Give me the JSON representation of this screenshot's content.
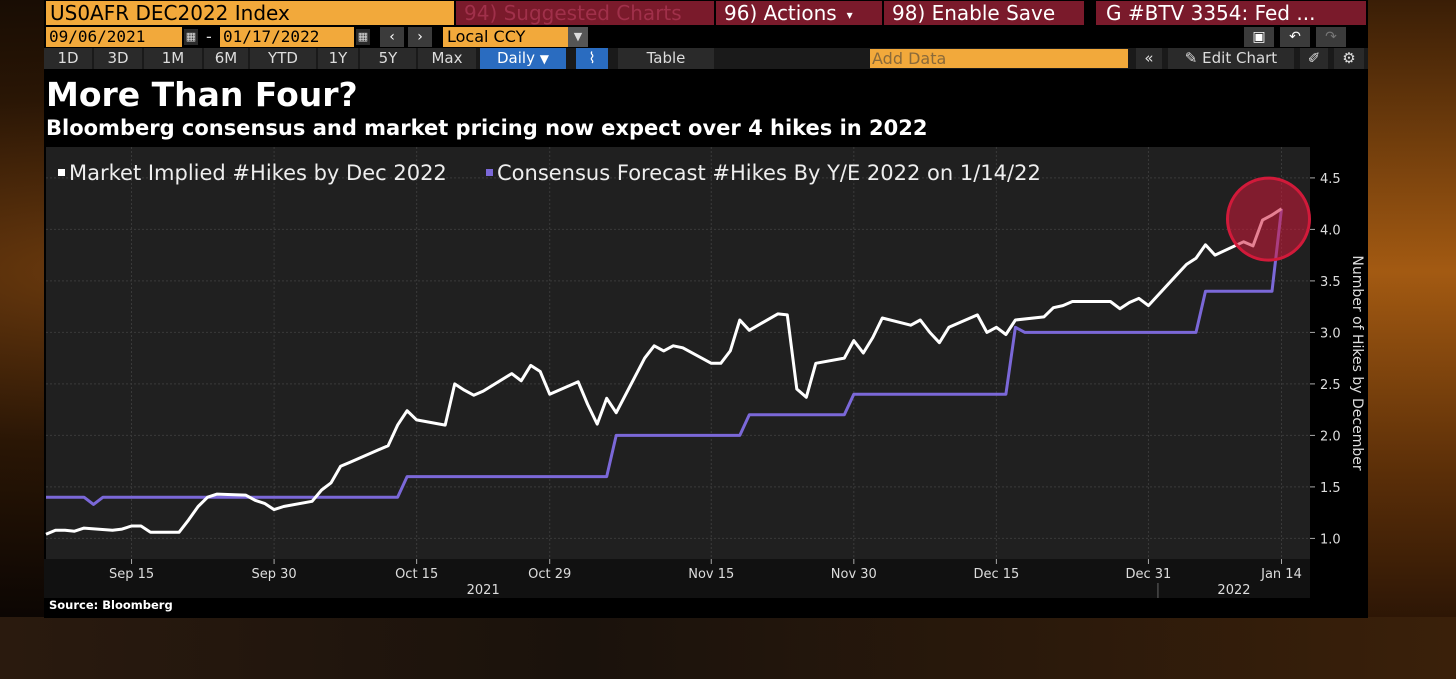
{
  "toolbar": {
    "ticker": "US0AFR DEC2022 Index",
    "suggested_charts": "94) Suggested Charts",
    "actions": "96) Actions",
    "enable_save": "98) Enable Save",
    "news": "G #BTV 3354: Fed ...",
    "start_date": "09/06/2021",
    "end_date": "01/17/2022",
    "currency": "Local CCY",
    "periods": [
      "1D",
      "3D",
      "1M",
      "6M",
      "YTD",
      "1Y",
      "5Y",
      "Max"
    ],
    "frequency": "Daily",
    "table_label": "Table",
    "add_data_placeholder": "Add Data",
    "edit_chart": "Edit Chart"
  },
  "title": "More Than Four?",
  "subtitle": "Bloomberg consensus and market pricing now expect over 4 hikes in 2022",
  "source": "Source: Bloomberg",
  "colors": {
    "market_series": "#ffffff",
    "consensus_series": "#7b68d8",
    "highlight_circle": "#d11a3a",
    "ticker_bg": "#f2a93b",
    "button_bg": "#7a1a2b",
    "active_tab": "#2a6cc0"
  },
  "chart_data": {
    "type": "line",
    "title": "More Than Four?",
    "subtitle": "Bloomberg consensus and market pricing now expect over 4 hikes in 2022",
    "ylabel": "Number of Hikes by December",
    "ylim": [
      0.8,
      4.8
    ],
    "yticks": [
      1.0,
      1.5,
      2.0,
      2.5,
      3.0,
      3.5,
      4.0,
      4.5
    ],
    "ytick_labels": [
      "1.0",
      "1.5",
      "2.0",
      "2.5",
      "3.0",
      "3.5",
      "4.0",
      "4.5"
    ],
    "xlim": [
      "2021-09-06",
      "2022-01-17"
    ],
    "xticks": [
      "2021-09-15",
      "2021-09-30",
      "2021-10-15",
      "2021-10-29",
      "2021-11-15",
      "2021-11-30",
      "2021-12-15",
      "2021-12-31",
      "2022-01-14"
    ],
    "xtick_labels": [
      "Sep 15",
      "Sep 30",
      "Oct 15",
      "Oct 29",
      "Nov 15",
      "Nov 30",
      "Dec 15",
      "Dec 31",
      "Jan 14"
    ],
    "year_labels": [
      {
        "date": "2021-10-22",
        "label": "2021"
      },
      {
        "date": "2022-01-09",
        "label": "2022"
      }
    ],
    "grid": true,
    "legend": "top-left",
    "series": [
      {
        "name": "Market Implied #Hikes by Dec 2022",
        "color": "#ffffff",
        "points": [
          [
            "2021-09-06",
            1.04
          ],
          [
            "2021-09-07",
            1.08
          ],
          [
            "2021-09-08",
            1.08
          ],
          [
            "2021-09-09",
            1.07
          ],
          [
            "2021-09-10",
            1.1
          ],
          [
            "2021-09-13",
            1.08
          ],
          [
            "2021-09-14",
            1.09
          ],
          [
            "2021-09-15",
            1.12
          ],
          [
            "2021-09-16",
            1.12
          ],
          [
            "2021-09-17",
            1.06
          ],
          [
            "2021-09-20",
            1.06
          ],
          [
            "2021-09-21",
            1.18
          ],
          [
            "2021-09-22",
            1.31
          ],
          [
            "2021-09-23",
            1.4
          ],
          [
            "2021-09-24",
            1.43
          ],
          [
            "2021-09-27",
            1.42
          ],
          [
            "2021-09-28",
            1.37
          ],
          [
            "2021-09-29",
            1.34
          ],
          [
            "2021-09-30",
            1.28
          ],
          [
            "2021-10-01",
            1.31
          ],
          [
            "2021-10-04",
            1.36
          ],
          [
            "2021-10-05",
            1.47
          ],
          [
            "2021-10-06",
            1.54
          ],
          [
            "2021-10-07",
            1.7
          ],
          [
            "2021-10-08",
            1.74
          ],
          [
            "2021-10-11",
            1.86
          ],
          [
            "2021-10-12",
            1.9
          ],
          [
            "2021-10-13",
            2.1
          ],
          [
            "2021-10-14",
            2.24
          ],
          [
            "2021-10-15",
            2.15
          ],
          [
            "2021-10-18",
            2.1
          ],
          [
            "2021-10-19",
            2.5
          ],
          [
            "2021-10-20",
            2.44
          ],
          [
            "2021-10-21",
            2.39
          ],
          [
            "2021-10-22",
            2.43
          ],
          [
            "2021-10-25",
            2.6
          ],
          [
            "2021-10-26",
            2.53
          ],
          [
            "2021-10-27",
            2.68
          ],
          [
            "2021-10-28",
            2.62
          ],
          [
            "2021-10-29",
            2.4
          ],
          [
            "2021-11-01",
            2.52
          ],
          [
            "2021-11-02",
            2.3
          ],
          [
            "2021-11-03",
            2.11
          ],
          [
            "2021-11-04",
            2.36
          ],
          [
            "2021-11-05",
            2.22
          ],
          [
            "2021-11-08",
            2.75
          ],
          [
            "2021-11-09",
            2.87
          ],
          [
            "2021-11-10",
            2.82
          ],
          [
            "2021-11-11",
            2.87
          ],
          [
            "2021-11-12",
            2.85
          ],
          [
            "2021-11-15",
            2.7
          ],
          [
            "2021-11-16",
            2.7
          ],
          [
            "2021-11-17",
            2.82
          ],
          [
            "2021-11-18",
            3.12
          ],
          [
            "2021-11-19",
            3.02
          ],
          [
            "2021-11-22",
            3.18
          ],
          [
            "2021-11-23",
            3.17
          ],
          [
            "2021-11-24",
            2.45
          ],
          [
            "2021-11-25",
            2.37
          ],
          [
            "2021-11-26",
            2.7
          ],
          [
            "2021-11-29",
            2.75
          ],
          [
            "2021-11-30",
            2.92
          ],
          [
            "2021-12-01",
            2.8
          ],
          [
            "2021-12-02",
            2.95
          ],
          [
            "2021-12-03",
            3.14
          ],
          [
            "2021-12-06",
            3.07
          ],
          [
            "2021-12-07",
            3.12
          ],
          [
            "2021-12-08",
            3.0
          ],
          [
            "2021-12-09",
            2.9
          ],
          [
            "2021-12-10",
            3.05
          ],
          [
            "2021-12-13",
            3.17
          ],
          [
            "2021-12-14",
            3.0
          ],
          [
            "2021-12-15",
            3.05
          ],
          [
            "2021-12-16",
            2.98
          ],
          [
            "2021-12-17",
            3.12
          ],
          [
            "2021-12-20",
            3.15
          ],
          [
            "2021-12-21",
            3.24
          ],
          [
            "2021-12-22",
            3.26
          ],
          [
            "2021-12-23",
            3.3
          ],
          [
            "2021-12-24",
            3.3
          ],
          [
            "2021-12-27",
            3.3
          ],
          [
            "2021-12-28",
            3.23
          ],
          [
            "2021-12-29",
            3.29
          ],
          [
            "2021-12-30",
            3.33
          ],
          [
            "2021-12-31",
            3.26
          ],
          [
            "2022-01-03",
            3.56
          ],
          [
            "2022-01-04",
            3.66
          ],
          [
            "2022-01-05",
            3.72
          ],
          [
            "2022-01-06",
            3.85
          ],
          [
            "2022-01-07",
            3.75
          ],
          [
            "2022-01-10",
            3.88
          ],
          [
            "2022-01-11",
            3.84
          ],
          [
            "2022-01-12",
            4.09
          ],
          [
            "2022-01-13",
            4.14
          ],
          [
            "2022-01-14",
            4.2
          ]
        ]
      },
      {
        "name": "Consensus Forecast #Hikes By Y/E 2022 on 1/14/22",
        "color": "#7b68d8",
        "points": [
          [
            "2021-09-06",
            1.4
          ],
          [
            "2021-09-10",
            1.4
          ],
          [
            "2021-09-11",
            1.33
          ],
          [
            "2021-09-12",
            1.4
          ],
          [
            "2021-10-13",
            1.4
          ],
          [
            "2021-10-14",
            1.6
          ],
          [
            "2021-11-04",
            1.6
          ],
          [
            "2021-11-05",
            2.0
          ],
          [
            "2021-11-06",
            2.0
          ],
          [
            "2021-11-15",
            2.0
          ],
          [
            "2021-11-18",
            2.0
          ],
          [
            "2021-11-19",
            2.2
          ],
          [
            "2021-11-29",
            2.2
          ],
          [
            "2021-11-30",
            2.4
          ],
          [
            "2021-12-16",
            2.4
          ],
          [
            "2021-12-17",
            3.05
          ],
          [
            "2021-12-18",
            3.0
          ],
          [
            "2022-01-05",
            3.0
          ],
          [
            "2022-01-06",
            3.4
          ],
          [
            "2022-01-13",
            3.4
          ],
          [
            "2022-01-14",
            4.2
          ]
        ]
      }
    ],
    "annotations": [
      {
        "type": "circle",
        "date": "2022-01-14",
        "value": 4.1,
        "color": "#d11a3a"
      }
    ]
  }
}
